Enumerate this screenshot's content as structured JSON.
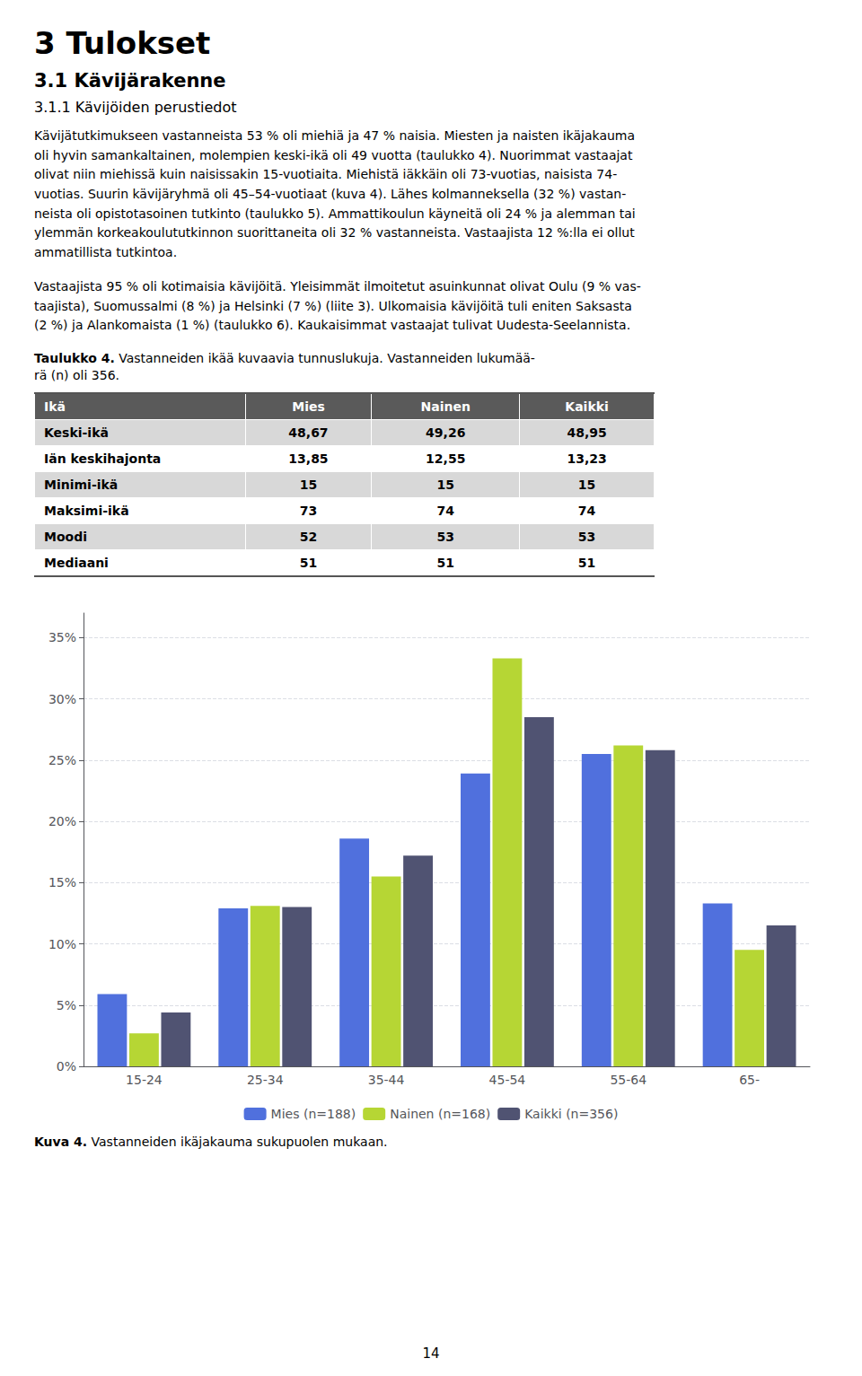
{
  "chart_data": [
    {
      "type": "bar",
      "title": "Kuva 4. Vastanneiden ikäjakauma sukupuolen mukaan.",
      "annotations": [
        "3 Tulokset",
        "3.1 Kävijärakenne",
        "3.1.1 Kävijöiden perustiedot",
        "Kävijätutkimukseen vastanneista 53 % oli miehiä ja 47 % naisia. Miesten ja naisten ikäjakauma\noli hyvin samankaltainen, molempien keski-ikä oli 49 vuotta (taulukko 4). Nuorimmat vastaajat\nolivat niin miehissä kuin naisissakin 15-vuotiaita. Miehistä iäkkäin oli 73-vuotias, naisista 74-\nvuotias. Suurin kävijäryhmä oli 45–54-vuotiaat (kuva 4). Lähes kolmanneksella (32 %) vastan-\nneista oli opistotasoinen tutkinto (taulukko 5). Ammattikoulun käyneitä oli 24 % ja alemman tai\nylemmän korkeakoulututkinnon suorittaneita oli 32 % vastanneista. Vastaajista 12 %:lla ei ollut\nammatillista tutkintoa.",
        "Vastaajista 95 % oli kotimaisia kävijöitä. Yleisimmät ilmoitetut asuinkunnat olivat Oulu (9 % vas-\ntaajista), Suomussalmi (8 %) ja Helsinki (7 %) (liite 3). Ulkomaisia kävijöitä tuli eniten Saksasta\n(2 %) ja Alankomaista (1 %) (taulukko 6). Kaukaisimmat vastaajat tulivat Uudesta-Seelannista.",
        "14"
      ],
      "categories": [
        "15-24",
        "25-34",
        "35-44",
        "45-54",
        "55-64",
        "65-"
      ],
      "series": [
        {
          "name": "Mies (n=188)",
          "values": [
            0.059,
            0.129,
            0.186,
            0.239,
            0.255,
            0.133
          ]
        },
        {
          "name": "Nainen (n=168)",
          "values": [
            0.027,
            0.131,
            0.155,
            0.333,
            0.262,
            0.095
          ]
        },
        {
          "name": "Kaikki (n=356)",
          "values": [
            0.044,
            0.13,
            0.172,
            0.285,
            0.258,
            0.115
          ]
        }
      ],
      "ylim": [
        0,
        0.37
      ],
      "yticks": [
        {
          "value": 0,
          "label": "0%"
        },
        {
          "value": 0.05,
          "label": "5%"
        },
        {
          "value": 0.1,
          "label": "10%"
        },
        {
          "value": 0.15,
          "label": "15%"
        },
        {
          "value": 0.2,
          "label": "20%"
        },
        {
          "value": 0.25,
          "label": "25%"
        },
        {
          "value": 0.3,
          "label": "30%"
        },
        {
          "value": 0.35,
          "label": "35%"
        }
      ],
      "grid": true,
      "legend": "bottom"
    },
    {
      "type": "table",
      "title": "Taulukko 4. Vastanneiden ikää kuvaavia tunnuslukuja. Vastanneiden lukumää-\nrä (n) oli 356.",
      "columns": [
        "Ikä",
        "Mies",
        "Nainen",
        "Kaikki"
      ],
      "rows": [
        [
          "Keski-ikä",
          "48,67",
          "49,26",
          "48,95"
        ],
        [
          "Iän keskihajonta",
          "13,85",
          "12,55",
          "13,23"
        ],
        [
          "Minimi-ikä",
          "15",
          "15",
          "15"
        ],
        [
          "Maksimi-ikä",
          "73",
          "74",
          "74"
        ],
        [
          "Moodi",
          "52",
          "53",
          "53"
        ],
        [
          "Mediaani",
          "51",
          "51",
          "51"
        ]
      ]
    }
  ]
}
